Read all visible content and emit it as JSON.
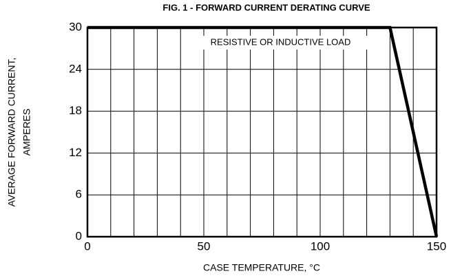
{
  "chart_data": {
    "type": "line",
    "title": "FIG. 1 - FORWARD CURRENT DERATING CURVE",
    "x_label": "CASE TEMPERATURE, °C",
    "y_label": [
      "AVERAGE FORWARD CURRENT,",
      "AMPERES"
    ],
    "annotation": "RESISTIVE OR INDUCTIVE LOAD",
    "x": [
      0,
      130,
      150
    ],
    "series": [
      {
        "name": null,
        "color": "#000000",
        "values": [
          30,
          30,
          0
        ]
      }
    ],
    "xlim": [
      0,
      150
    ],
    "xticks": [
      0,
      50,
      100,
      150
    ],
    "x_grid": [
      0,
      10,
      20,
      30,
      40,
      50,
      60,
      70,
      80,
      90,
      100,
      110,
      120,
      130,
      140,
      150
    ],
    "ylim": [
      0,
      30
    ],
    "yticks": [
      0,
      6,
      12,
      18,
      24,
      30
    ],
    "grid": true
  }
}
